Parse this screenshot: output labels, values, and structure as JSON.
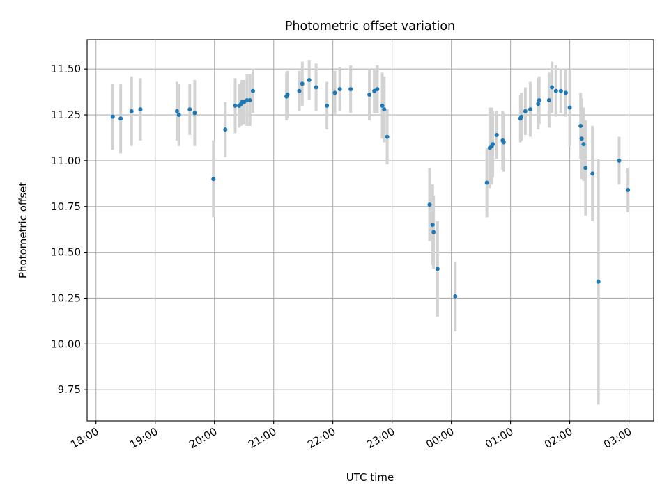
{
  "chart_data": {
    "type": "scatter",
    "title": "Photometric offset variation",
    "xlabel": "UTC time",
    "ylabel": "Photometric offset",
    "grid": true,
    "x_ticks": [
      "18:00",
      "19:00",
      "20:00",
      "21:00",
      "22:00",
      "23:00",
      "00:00",
      "01:00",
      "02:00",
      "03:00"
    ],
    "y_ticks": [
      "9.75",
      "10.00",
      "10.25",
      "10.50",
      "10.75",
      "11.00",
      "11.25",
      "11.50"
    ],
    "xlim": [
      "17:51",
      "03:25"
    ],
    "ylim": [
      9.58,
      11.66
    ],
    "colors": {
      "point": "#1f77b4",
      "errorbar": "#d3d3d3",
      "grid": "#b0b0b0"
    },
    "series": [
      {
        "x": [
          "18:17",
          "18:25",
          "18:36",
          "18:45",
          "19:22",
          "19:24",
          "19:35",
          "19:40",
          "19:59",
          "20:11",
          "20:21",
          "20:25",
          "20:27",
          "20:28",
          "20:30",
          "20:33",
          "20:36",
          "20:39",
          "21:13",
          "21:14",
          "21:26",
          "21:29",
          "21:36",
          "21:43",
          "21:54",
          "22:02",
          "22:07",
          "22:18",
          "22:37",
          "22:42",
          "22:45",
          "22:50",
          "22:52",
          "22:55",
          "23:38",
          "23:41",
          "23:42",
          "23:46",
          "00:04",
          "00:36",
          "00:39",
          "00:41",
          "00:42",
          "00:46",
          "00:52",
          "00:53",
          "01:10",
          "01:11",
          "01:15",
          "01:20",
          "01:28",
          "01:29",
          "01:39",
          "01:42",
          "01:46",
          "01:51",
          "01:56",
          "02:00",
          "02:11",
          "02:12",
          "02:14",
          "02:16",
          "02:23",
          "02:29",
          "02:50",
          "02:59"
        ],
        "y": [
          11.24,
          11.23,
          11.27,
          11.28,
          11.27,
          11.25,
          11.28,
          11.26,
          10.9,
          11.17,
          11.3,
          11.3,
          11.31,
          11.32,
          11.32,
          11.33,
          11.33,
          11.38,
          11.35,
          11.36,
          11.38,
          11.42,
          11.44,
          11.4,
          11.3,
          11.37,
          11.39,
          11.39,
          11.36,
          11.38,
          11.39,
          11.3,
          11.28,
          11.13,
          10.76,
          10.65,
          10.61,
          10.41,
          10.26,
          10.88,
          11.07,
          11.08,
          11.09,
          11.14,
          11.11,
          11.1,
          11.23,
          11.24,
          11.27,
          11.28,
          11.31,
          11.33,
          11.33,
          11.4,
          11.38,
          11.38,
          11.37,
          11.29,
          11.19,
          11.12,
          11.09,
          10.96,
          10.93,
          10.34,
          11.0,
          10.84
        ],
        "err": [
          0.18,
          0.19,
          0.19,
          0.17,
          0.16,
          0.17,
          0.14,
          0.18,
          0.21,
          0.15,
          0.15,
          0.12,
          0.12,
          0.12,
          0.12,
          0.14,
          0.14,
          0.12,
          0.13,
          0.13,
          0.11,
          0.12,
          0.11,
          0.13,
          0.13,
          0.12,
          0.12,
          0.13,
          0.14,
          0.12,
          0.13,
          0.18,
          0.18,
          0.15,
          0.2,
          0.22,
          0.2,
          0.26,
          0.19,
          0.19,
          0.22,
          0.21,
          0.18,
          0.13,
          0.16,
          0.16,
          0.13,
          0.13,
          0.13,
          0.15,
          0.14,
          0.13,
          0.15,
          0.14,
          0.14,
          0.12,
          0.13,
          0.21,
          0.18,
          0.22,
          0.2,
          0.26,
          0.26,
          0.67,
          0.13,
          0.12
        ]
      }
    ]
  }
}
